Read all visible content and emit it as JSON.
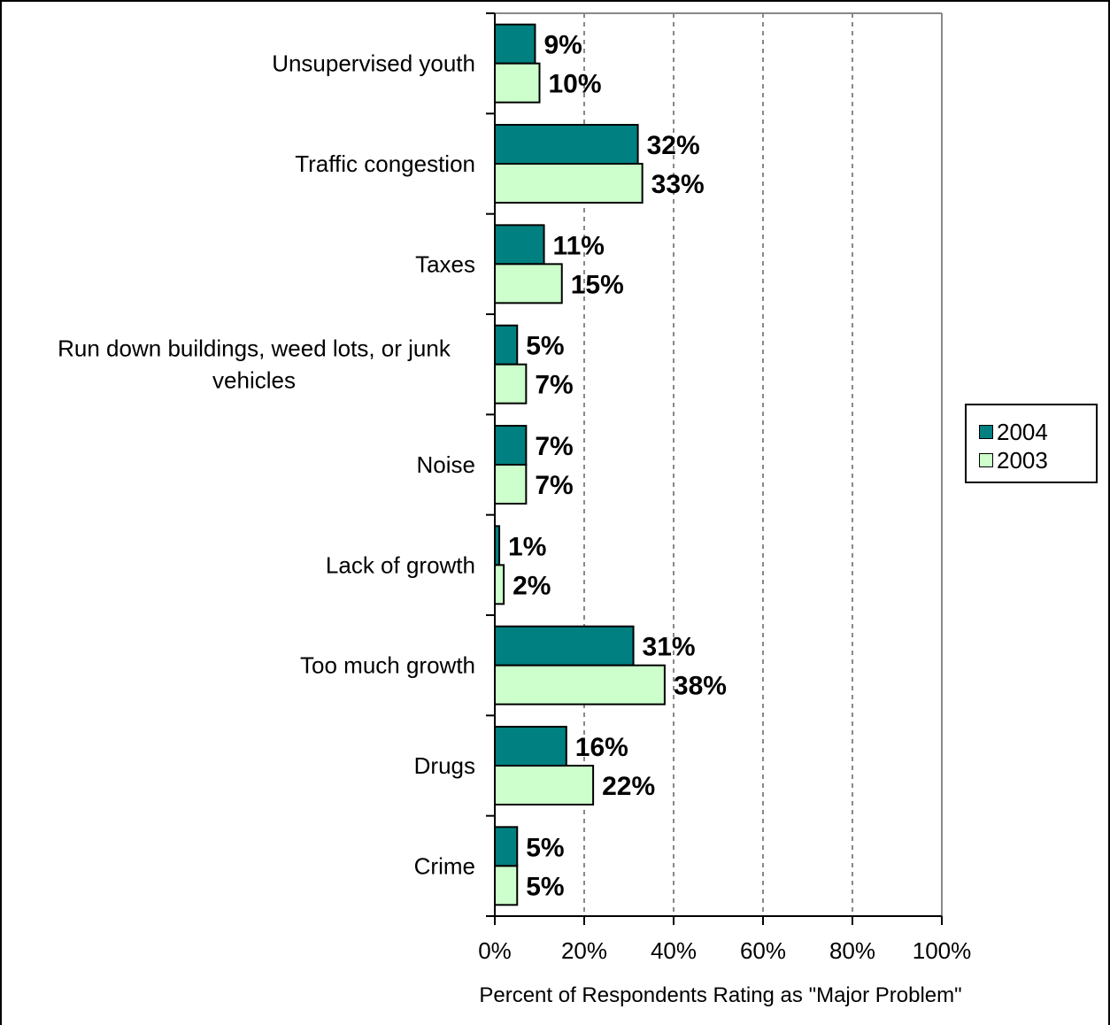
{
  "chart_data": {
    "type": "bar",
    "orientation": "horizontal",
    "categories": [
      "Unsupervised youth",
      "Traffic congestion",
      "Taxes",
      "Run down buildings, weed lots, or junk vehicles",
      "Noise",
      "Lack of growth",
      "Too much growth",
      "Drugs",
      "Crime"
    ],
    "series": [
      {
        "name": "2004",
        "values": [
          9,
          32,
          11,
          5,
          7,
          1,
          31,
          16,
          5
        ],
        "color": "#008080"
      },
      {
        "name": "2003",
        "values": [
          10,
          33,
          15,
          7,
          7,
          2,
          38,
          22,
          5
        ],
        "color": "#ccffcc"
      }
    ],
    "data_labels": {
      "2004": [
        "9%",
        "32%",
        "11%",
        "5%",
        "7%",
        "1%",
        "31%",
        "16%",
        "5%"
      ],
      "2003": [
        "10%",
        "33%",
        "15%",
        "7%",
        "7%",
        "2%",
        "38%",
        "22%",
        "5%"
      ]
    },
    "xlabel": "Percent of Respondents Rating as \"Major Problem\"",
    "ylabel": "",
    "xlim": [
      0,
      100
    ],
    "x_ticks": [
      0,
      20,
      40,
      60,
      80,
      100
    ],
    "x_tick_labels": [
      "0%",
      "20%",
      "40%",
      "60%",
      "80%",
      "100%"
    ],
    "grid": "vertical dashed",
    "legend_position": "right"
  },
  "legend": {
    "items": [
      {
        "label": "2004",
        "color": "#008080"
      },
      {
        "label": "2003",
        "color": "#ccffcc"
      }
    ]
  }
}
